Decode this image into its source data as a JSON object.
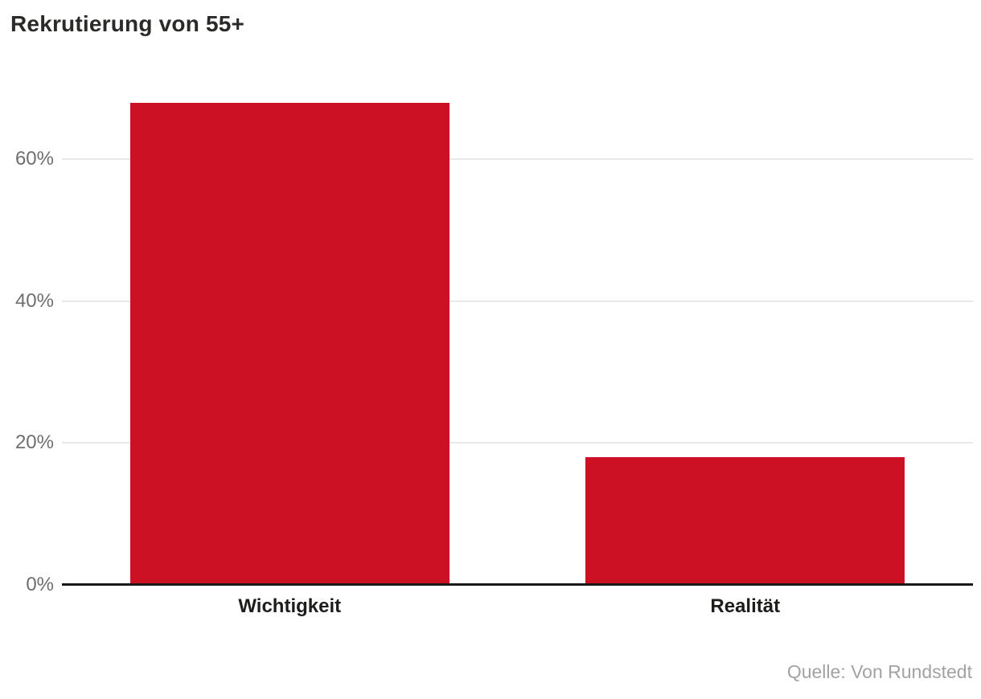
{
  "chart_data": {
    "type": "bar",
    "title": "Rekrutierung von 55+",
    "categories": [
      "Wichtigkeit",
      "Realität"
    ],
    "values": [
      68,
      18
    ],
    "unit": "%",
    "xlabel": "",
    "ylabel": "",
    "ylim": [
      0,
      70
    ],
    "yticks": [
      0,
      20,
      40,
      60
    ],
    "ytick_suffix": "%",
    "grid": true,
    "legend": "none",
    "source": "Quelle: Von Rundstedt",
    "colors": {
      "bar": "#cc1124",
      "title": "#2b2a28",
      "tick_label": "#6e6e6e",
      "category_label": "#1d1d1b",
      "gridline": "#e8e8e8",
      "axis_line": "#191919",
      "source_text": "#a2a2a2",
      "background": "#ffffff"
    }
  }
}
